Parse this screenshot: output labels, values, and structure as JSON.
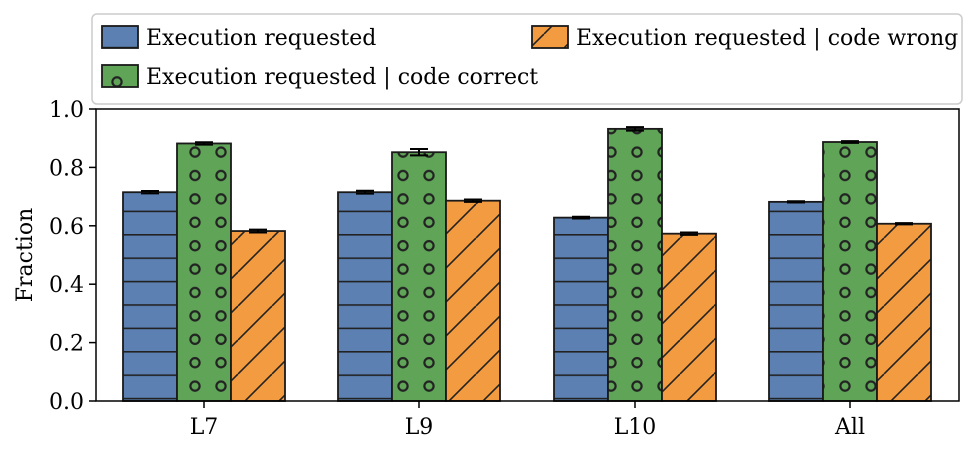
{
  "chart_data": {
    "type": "bar",
    "title": "",
    "xlabel": "",
    "ylabel": "Fraction",
    "ylim": [
      0,
      1.0
    ],
    "yticks": [
      0.0,
      0.2,
      0.4,
      0.6,
      0.8,
      1.0
    ],
    "ytick_labels": [
      "0.0",
      "0.2",
      "0.4",
      "0.6",
      "0.8",
      "1.0"
    ],
    "categories": [
      "L7",
      "L9",
      "L10",
      "All"
    ],
    "grid": false,
    "legend_placement": "top",
    "series": [
      {
        "name": "Execution requested",
        "values": [
          0.715,
          0.715,
          0.628,
          0.682
        ],
        "errors": [
          0.004,
          0.005,
          0.003,
          0.002
        ],
        "color": "#5b80b1",
        "hatch": "horizontal-lines"
      },
      {
        "name": "Execution requested | code correct",
        "values": [
          0.882,
          0.852,
          0.932,
          0.887
        ],
        "errors": [
          0.004,
          0.011,
          0.006,
          0.003
        ],
        "color": "#5fa457",
        "hatch": "circles"
      },
      {
        "name": "Execution requested | code wrong",
        "values": [
          0.582,
          0.686,
          0.573,
          0.607
        ],
        "errors": [
          0.005,
          0.004,
          0.004,
          0.002
        ],
        "color": "#f39b40",
        "hatch": "diagonal-lines"
      }
    ]
  }
}
